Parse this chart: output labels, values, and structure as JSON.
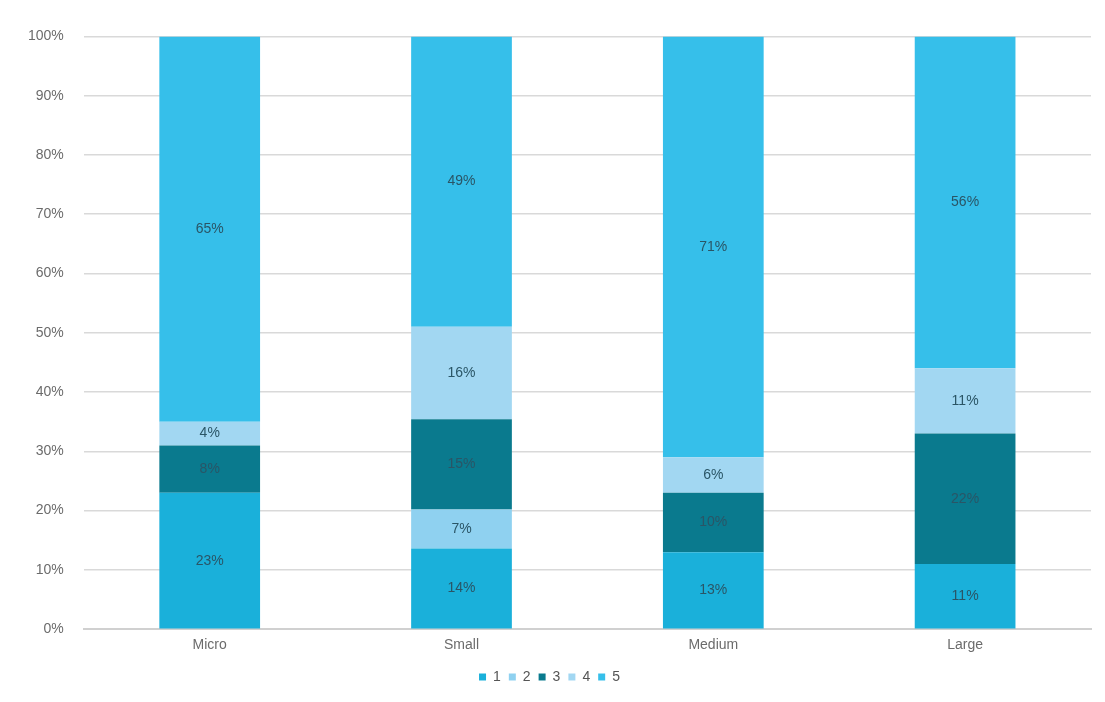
{
  "chart_data": {
    "type": "bar",
    "stacked": true,
    "categories": [
      "Micro",
      "Small",
      "Medium",
      "Large"
    ],
    "series": [
      {
        "name": "1",
        "color": "#1ab0da",
        "values": [
          23,
          13.6,
          13,
          11
        ],
        "value_labels": [
          "23%",
          "14%",
          "13%",
          "11%"
        ]
      },
      {
        "name": "2",
        "color": "#8fd1f0",
        "values": [
          0,
          6.6,
          0,
          0
        ],
        "value_labels": [
          null,
          "7%",
          null,
          null
        ]
      },
      {
        "name": "3",
        "color": "#0a7a8e",
        "values": [
          8,
          15.2,
          10,
          22
        ],
        "value_labels": [
          "8%",
          "15%",
          "10%",
          "22%"
        ]
      },
      {
        "name": "4",
        "color": "#a2d7f2",
        "values": [
          4,
          15.6,
          6,
          11
        ],
        "value_labels": [
          "4%",
          "16%",
          "6%",
          "11%"
        ]
      },
      {
        "name": "5",
        "color": "#36bfea",
        "values": [
          65,
          49,
          71,
          56
        ],
        "value_labels": [
          "65%",
          "49%",
          "71%",
          "56%"
        ]
      }
    ],
    "ylim": [
      0,
      100
    ],
    "yticks": [
      {
        "value": 0,
        "label": "0%"
      },
      {
        "value": 10,
        "label": "10%"
      },
      {
        "value": 20,
        "label": "20%"
      },
      {
        "value": 30,
        "label": "30%"
      },
      {
        "value": 40,
        "label": "40%"
      },
      {
        "value": 50,
        "label": "50%"
      },
      {
        "value": 60,
        "label": "60%"
      },
      {
        "value": 70,
        "label": "70%"
      },
      {
        "value": 80,
        "label": "80%"
      },
      {
        "value": 90,
        "label": "90%"
      },
      {
        "value": 100,
        "label": "100%"
      }
    ],
    "grid": "y",
    "legend": "bottom"
  }
}
